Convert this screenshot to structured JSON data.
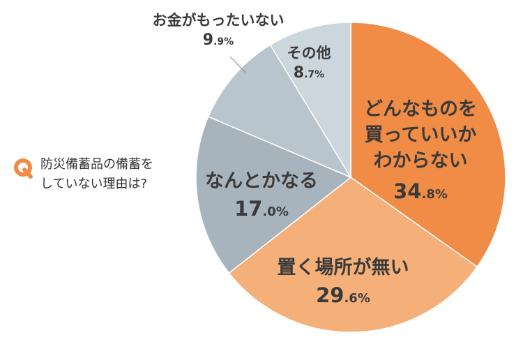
{
  "question": {
    "line1": "防災備蓄品の備蓄を",
    "line2": "していない理由は?"
  },
  "chart_data": {
    "type": "pie",
    "title": "防災備蓄品の備蓄をしていない理由は?",
    "slices": [
      {
        "label": "どんなものを買っていいかわからない",
        "label_lines": [
          "どんなものを",
          "買っていいか",
          "わからない"
        ],
        "value": 34.8,
        "value_int": "34",
        "value_dec": ".8%",
        "color": "#f08c46"
      },
      {
        "label": "置く場所が無い",
        "label_lines": [
          "置く場所が無い"
        ],
        "value": 29.6,
        "value_int": "29",
        "value_dec": ".6%",
        "color": "#f5b07a"
      },
      {
        "label": "なんとかなる",
        "label_lines": [
          "なんとかなる"
        ],
        "value": 17.0,
        "value_int": "17",
        "value_dec": ".0%",
        "color": "#a7b3bd"
      },
      {
        "label": "お金がもったいない",
        "label_lines": [
          "お金がもったいない"
        ],
        "value": 9.9,
        "value_int": "9",
        "value_dec": ".9%",
        "color": "#b9c5ce"
      },
      {
        "label": "その他",
        "label_lines": [
          "その他"
        ],
        "value": 8.7,
        "value_int": "8",
        "value_dec": ".7%",
        "color": "#ccd6dd"
      }
    ],
    "start": "12 o'clock",
    "direction": "clockwise",
    "legend": "none"
  },
  "colors": {
    "accent": "#f08c46",
    "text": "#333333",
    "separator": "#ffffff",
    "leader_line": "#888888"
  },
  "icons": {
    "question_badge": "q-icon"
  }
}
